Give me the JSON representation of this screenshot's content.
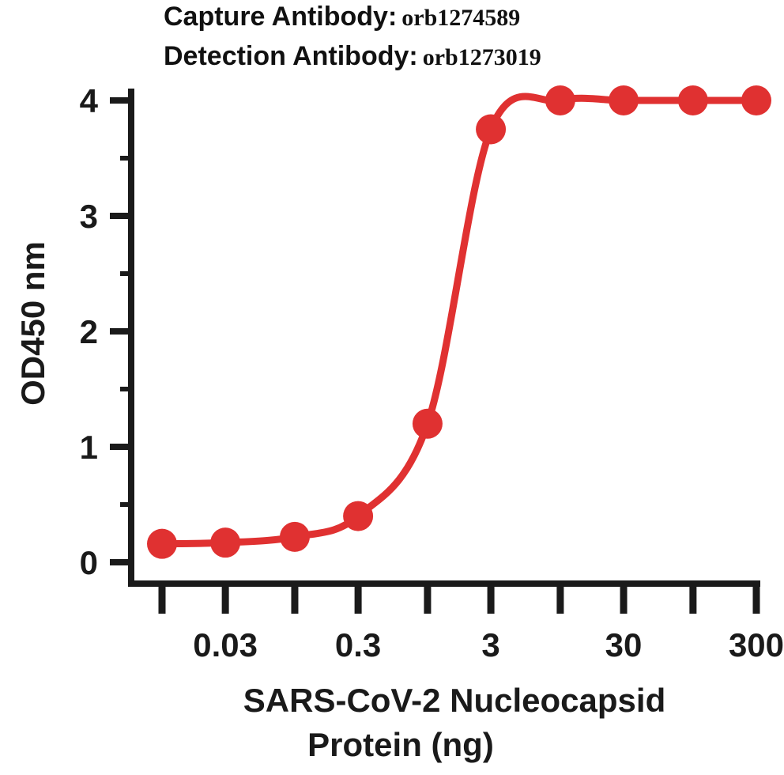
{
  "header": {
    "capture_label": "Capture Antibody:",
    "capture_value": "orb1274589",
    "detection_label": "Detection Antibody:",
    "detection_value": "orb1273019"
  },
  "chart_data": {
    "type": "line",
    "title": "",
    "xlabel_lines": [
      "SARS-CoV-2 Nucleocapsid",
      "Protein (ng)"
    ],
    "ylabel": "OD450 nm",
    "x_scale": "log",
    "x_ticks": [
      0.01,
      0.03,
      0.1,
      0.3,
      1,
      3,
      10,
      30,
      100,
      300
    ],
    "x_tick_labels": [
      "",
      "0.03",
      "",
      "0.3",
      "",
      "3",
      "",
      "30",
      "",
      "300"
    ],
    "xlim": [
      0.01,
      300
    ],
    "y_ticks": [
      0,
      1,
      2,
      3,
      4
    ],
    "y_tick_labels": [
      "0",
      "1",
      "2",
      "3",
      "4"
    ],
    "ylim": [
      0,
      4
    ],
    "grid": false,
    "color": "#e03131",
    "series": [
      {
        "x": [
          0.01,
          0.03,
          0.1,
          0.3,
          1,
          3,
          10,
          30,
          100,
          300
        ],
        "y": [
          0.16,
          0.17,
          0.22,
          0.4,
          1.2,
          3.75,
          4.0,
          4.0,
          4.0,
          4.0
        ]
      }
    ]
  }
}
